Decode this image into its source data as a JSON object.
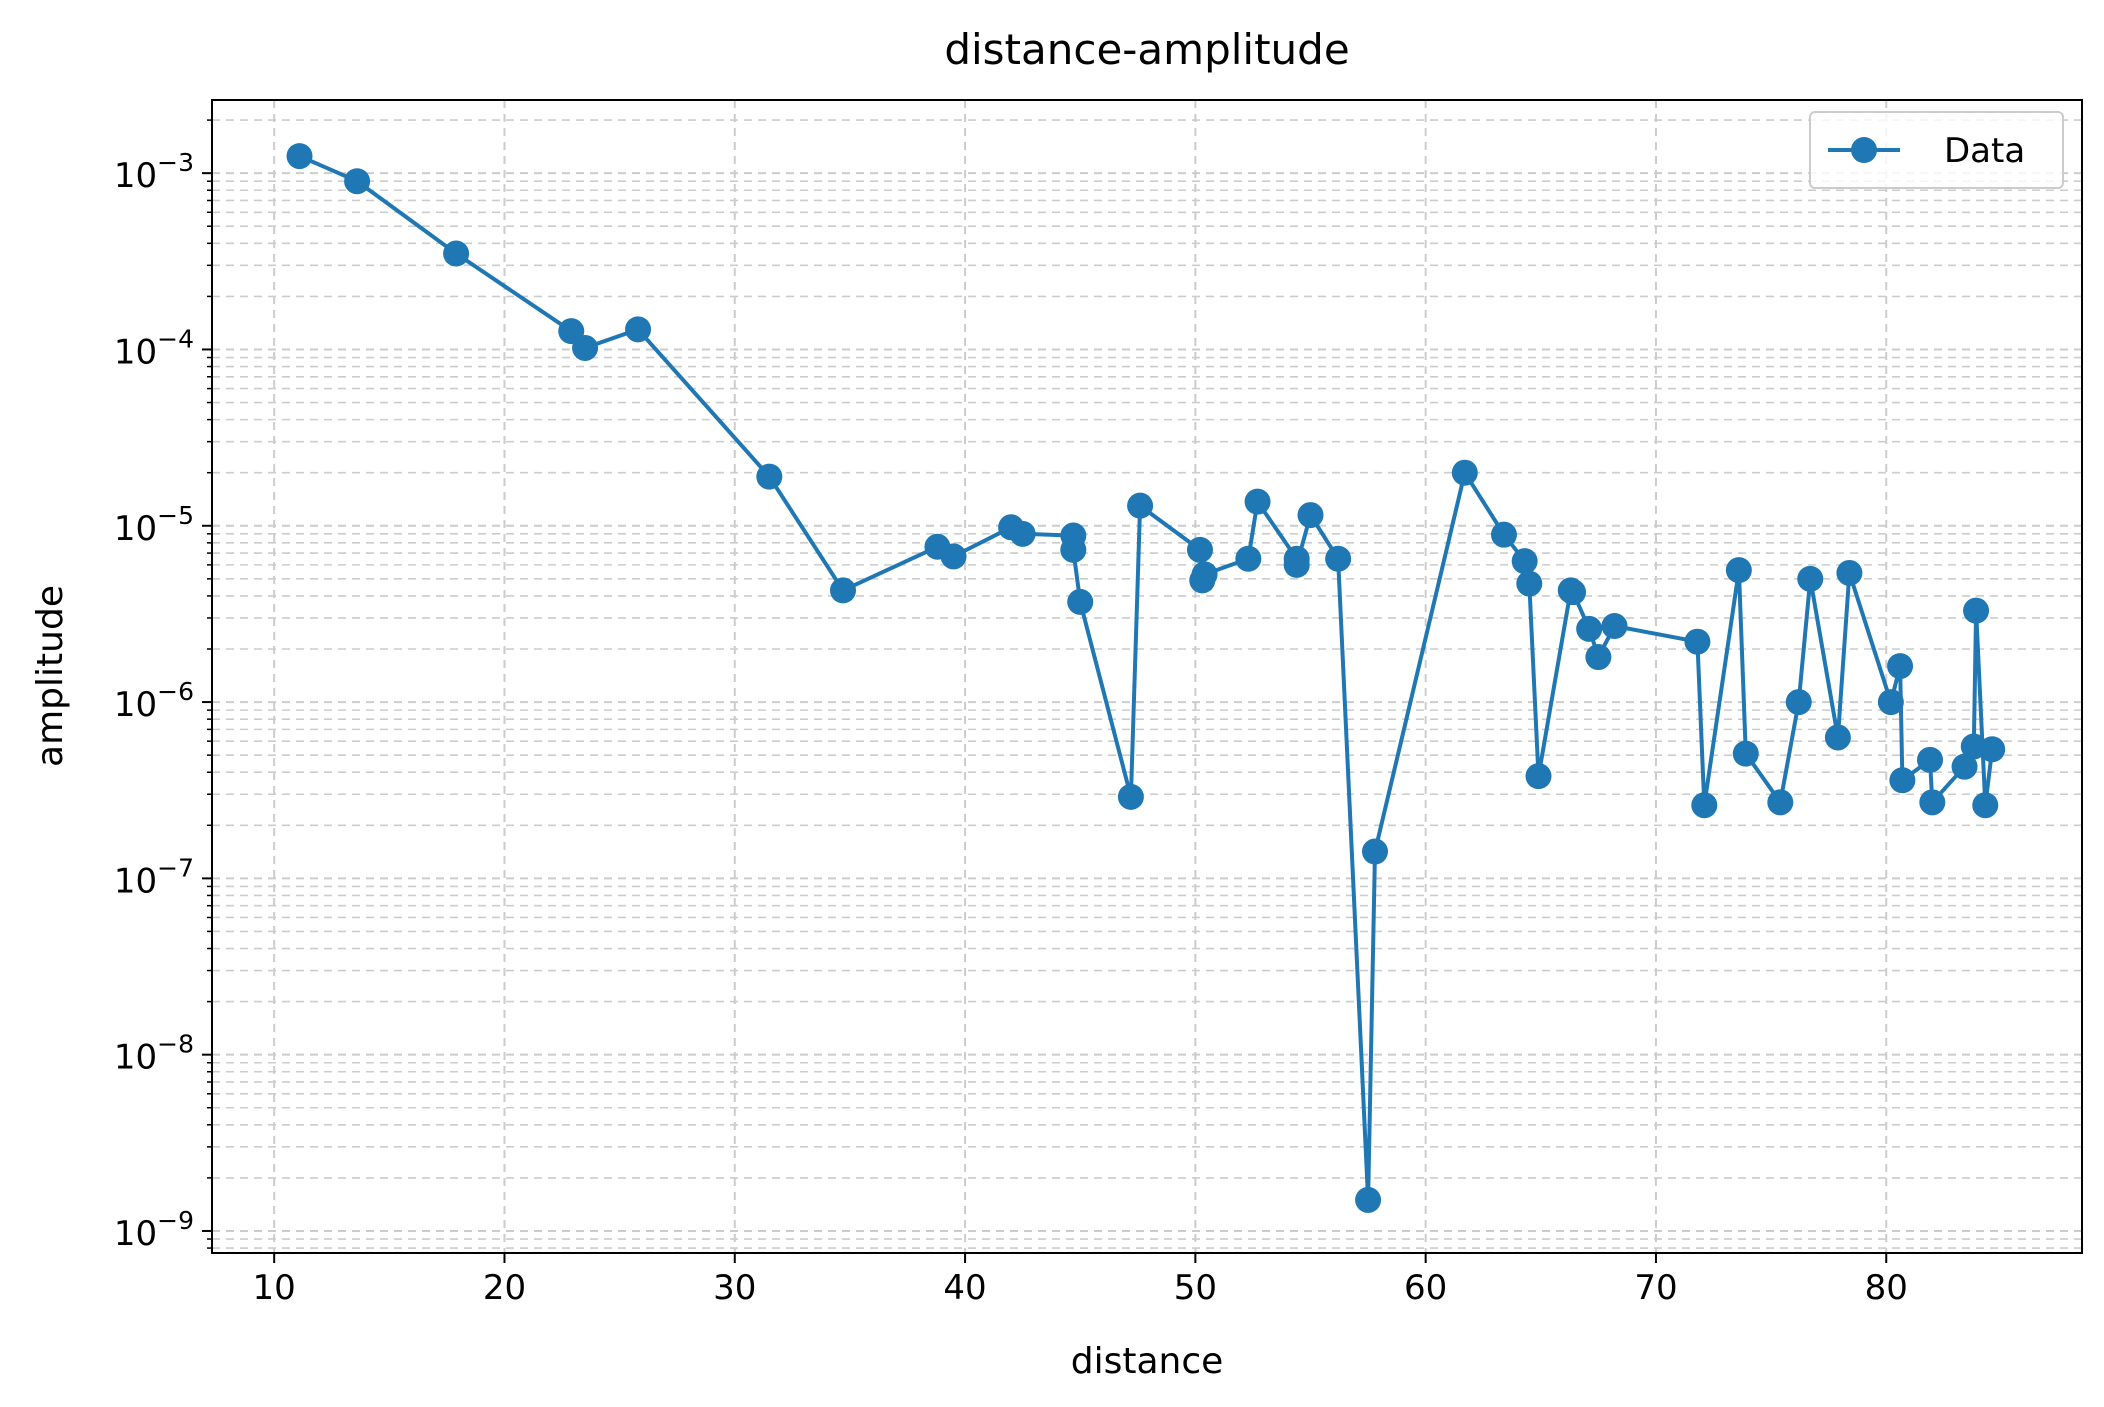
{
  "chart_data": {
    "type": "line",
    "title": "distance-amplitude",
    "xlabel": "distance",
    "ylabel": "amplitude",
    "yscale": "log",
    "xlim": [
      7.3,
      88.5
    ],
    "ylim": [
      7.5e-10,
      0.0026
    ],
    "x_ticks": [
      10,
      20,
      30,
      40,
      50,
      60,
      70,
      80
    ],
    "y_ticks": [
      {
        "value": 1e-09,
        "base": "10",
        "exp": "−9"
      },
      {
        "value": 1e-08,
        "base": "10",
        "exp": "−8"
      },
      {
        "value": 1e-07,
        "base": "10",
        "exp": "−7"
      },
      {
        "value": 1e-06,
        "base": "10",
        "exp": "−6"
      },
      {
        "value": 1e-05,
        "base": "10",
        "exp": "−5"
      },
      {
        "value": 0.0001,
        "base": "10",
        "exp": "−4"
      },
      {
        "value": 0.001,
        "base": "10",
        "exp": "−3"
      }
    ],
    "grid": true,
    "legend_position": "top-right",
    "colors": {
      "series": "#1f77b4",
      "grid": "#cccccc"
    },
    "series": [
      {
        "name": "Data",
        "points": [
          [
            11.1,
            0.00125
          ],
          [
            13.6,
            0.0009
          ],
          [
            17.9,
            0.00035
          ],
          [
            22.9,
            0.000127
          ],
          [
            23.5,
            0.000102
          ],
          [
            25.8,
            0.00013
          ],
          [
            31.5,
            1.9e-05
          ],
          [
            34.7,
            4.3e-06
          ],
          [
            38.8,
            7.6e-06
          ],
          [
            39.5,
            6.7e-06
          ],
          [
            42.0,
            9.8e-06
          ],
          [
            42.5,
            9e-06
          ],
          [
            44.7,
            8.8e-06
          ],
          [
            44.7,
            7.3e-06
          ],
          [
            45.0,
            3.7e-06
          ],
          [
            47.2,
            2.9e-07
          ],
          [
            47.6,
            1.3e-05
          ],
          [
            50.2,
            7.3e-06
          ],
          [
            50.3,
            4.9e-06
          ],
          [
            50.4,
            5.3e-06
          ],
          [
            52.3,
            6.5e-06
          ],
          [
            52.7,
            1.37e-05
          ],
          [
            54.4,
            6.5e-06
          ],
          [
            54.4,
            6e-06
          ],
          [
            55.0,
            1.15e-05
          ],
          [
            56.2,
            6.5e-06
          ],
          [
            57.5,
            1.5e-09
          ],
          [
            57.8,
            1.42e-07
          ],
          [
            61.7,
            2e-05
          ],
          [
            63.4,
            8.9e-06
          ],
          [
            64.3,
            6.3e-06
          ],
          [
            64.5,
            4.7e-06
          ],
          [
            64.9,
            3.8e-07
          ],
          [
            66.3,
            4.3e-06
          ],
          [
            66.4,
            4.2e-06
          ],
          [
            67.1,
            2.6e-06
          ],
          [
            67.5,
            1.8e-06
          ],
          [
            68.2,
            2.7e-06
          ],
          [
            71.8,
            2.2e-06
          ],
          [
            72.1,
            2.6e-07
          ],
          [
            73.6,
            5.6e-06
          ],
          [
            73.9,
            5.1e-07
          ],
          [
            75.4,
            2.7e-07
          ],
          [
            76.2,
            1e-06
          ],
          [
            76.7,
            5e-06
          ],
          [
            77.9,
            6.3e-07
          ],
          [
            78.4,
            5.4e-06
          ],
          [
            80.2,
            1e-06
          ],
          [
            80.6,
            1.6e-06
          ],
          [
            80.7,
            3.6e-07
          ],
          [
            81.9,
            4.7e-07
          ],
          [
            82.0,
            2.7e-07
          ],
          [
            83.4,
            4.3e-07
          ],
          [
            83.8,
            5.6e-07
          ],
          [
            83.9,
            3.3e-06
          ],
          [
            84.3,
            2.6e-07
          ],
          [
            84.6,
            5.4e-07
          ]
        ]
      }
    ]
  }
}
